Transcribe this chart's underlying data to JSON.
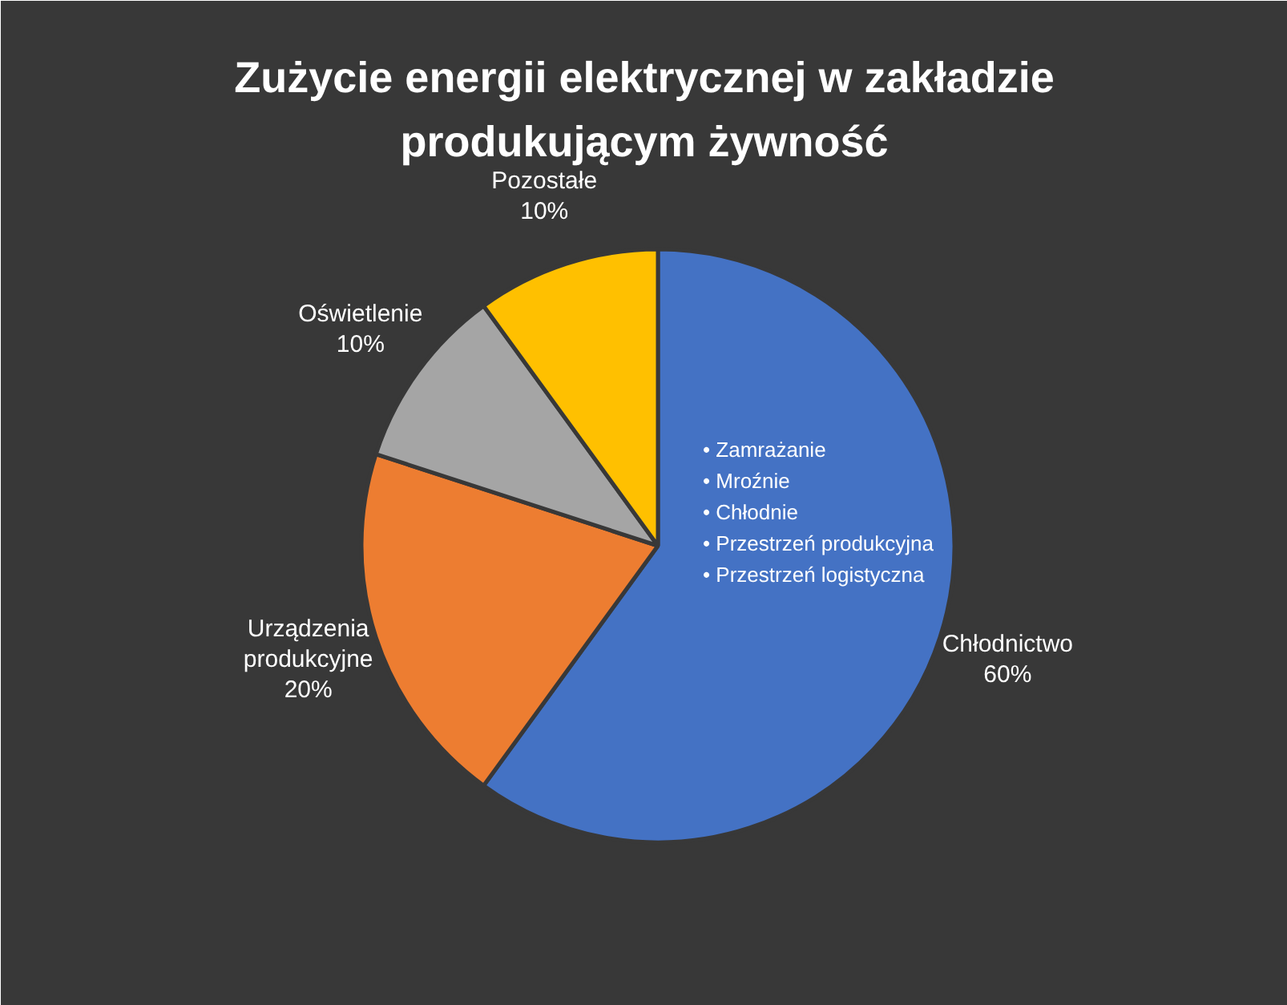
{
  "chart_data": {
    "type": "pie",
    "title": "Zużycie energii elektrycznej w zakładzie produkującym żywność",
    "categories": [
      "Chłodnictwo",
      "Urządzenia produkcyjne",
      "Oświetlenie",
      "Pozostałe"
    ],
    "values": [
      60,
      20,
      10,
      10
    ],
    "colors": [
      "#4472c4",
      "#ed7d31",
      "#a5a5a5",
      "#ffc000"
    ],
    "value_labels": [
      "60%",
      "20%",
      "10%",
      "10%"
    ],
    "annotations": [
      "• Zamrażanie",
      "• Mroźnie",
      "• Chłodnie",
      "• Przestrzeń produkcyjna",
      "• Przestrzeń logistyczna"
    ]
  }
}
